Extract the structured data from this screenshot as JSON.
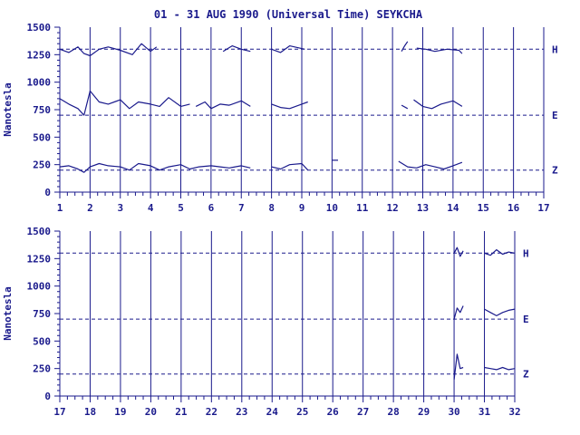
{
  "title": "01 - 31 AUG 1990 (Universal Time) SEYKCHA",
  "colors": {
    "ink": "#1a1a8c",
    "background": "#ffffff"
  },
  "chart_data": [
    {
      "type": "line",
      "ylabel": "Nanotesla",
      "xlim": [
        1,
        17
      ],
      "ylim": [
        0,
        1500
      ],
      "x_ticks": [
        "1",
        "2",
        "3",
        "4",
        "5",
        "6",
        "7",
        "8",
        "9",
        "10",
        "11",
        "12",
        "13",
        "14",
        "15",
        "16",
        "17"
      ],
      "y_ticks": [
        "0",
        "250",
        "500",
        "750",
        "1000",
        "1250",
        "1500"
      ],
      "grid": "vertical lines at each day",
      "reference_lines": [
        {
          "label": "H",
          "value": 1300
        },
        {
          "label": "E",
          "value": 700
        },
        {
          "label": "Z",
          "value": 200
        }
      ],
      "series": [
        {
          "name": "H",
          "segments": [
            {
              "x": [
                1.0,
                1.3,
                1.6,
                1.8,
                2.0,
                2.3,
                2.6,
                3.0,
                3.4,
                3.7,
                4.0,
                4.2
              ],
              "y": [
                1300,
                1270,
                1320,
                1260,
                1240,
                1300,
                1320,
                1290,
                1250,
                1350,
                1280,
                1320
              ]
            },
            {
              "x": [
                6.4,
                6.7,
                7.0,
                7.3
              ],
              "y": [
                1280,
                1330,
                1300,
                1280
              ]
            },
            {
              "x": [
                8.0,
                8.3,
                8.6,
                9.1
              ],
              "y": [
                1300,
                1270,
                1330,
                1300
              ]
            },
            {
              "x": [
                12.3,
                12.4,
                12.5
              ],
              "y": [
                1280,
                1330,
                1370
              ]
            },
            {
              "x": [
                12.8,
                13.1,
                13.4,
                13.8,
                14.2,
                14.3
              ],
              "y": [
                1310,
                1300,
                1280,
                1300,
                1290,
                1260
              ]
            }
          ]
        },
        {
          "name": "E",
          "segments": [
            {
              "x": [
                1.0,
                1.3,
                1.6,
                1.8,
                2.0,
                2.3,
                2.6,
                3.0,
                3.3,
                3.6,
                4.0,
                4.3,
                4.6,
                5.0,
                5.3
              ],
              "y": [
                850,
                800,
                760,
                700,
                920,
                820,
                800,
                840,
                760,
                820,
                800,
                780,
                860,
                780,
                800
              ]
            },
            {
              "x": [
                5.5,
                5.8,
                6.0,
                6.3,
                6.6,
                7.0,
                7.3
              ],
              "y": [
                780,
                820,
                760,
                800,
                790,
                830,
                780
              ]
            },
            {
              "x": [
                8.0,
                8.3,
                8.6,
                9.0,
                9.2
              ],
              "y": [
                800,
                770,
                760,
                800,
                820
              ]
            },
            {
              "x": [
                12.3,
                12.5
              ],
              "y": [
                790,
                760
              ]
            },
            {
              "x": [
                12.7,
                13.0,
                13.3,
                13.6,
                14.0,
                14.3
              ],
              "y": [
                840,
                780,
                760,
                800,
                830,
                780
              ]
            }
          ]
        },
        {
          "name": "Z",
          "segments": [
            {
              "x": [
                1.0,
                1.3,
                1.6,
                1.8,
                2.0,
                2.3,
                2.6,
                3.0,
                3.3,
                3.6,
                4.0,
                4.3,
                4.6,
                5.0,
                5.3,
                5.6,
                6.0,
                6.3,
                6.6,
                7.0,
                7.3
              ],
              "y": [
                230,
                240,
                210,
                180,
                230,
                260,
                240,
                230,
                200,
                260,
                240,
                200,
                230,
                250,
                210,
                230,
                240,
                230,
                220,
                240,
                220
              ]
            },
            {
              "x": [
                8.0,
                8.3,
                8.6,
                9.0,
                9.2
              ],
              "y": [
                230,
                210,
                250,
                260,
                200
              ]
            },
            {
              "x": [
                10.0,
                10.2
              ],
              "y": [
                290,
                290
              ]
            },
            {
              "x": [
                12.2,
                12.5,
                12.8,
                13.1,
                13.4,
                13.7,
                14.0,
                14.3
              ],
              "y": [
                280,
                230,
                220,
                250,
                230,
                210,
                240,
                270
              ]
            }
          ]
        }
      ]
    },
    {
      "type": "line",
      "ylabel": "Nanotesla",
      "xlim": [
        17,
        32
      ],
      "ylim": [
        0,
        1500
      ],
      "x_ticks": [
        "17",
        "18",
        "19",
        "20",
        "21",
        "22",
        "23",
        "24",
        "25",
        "26",
        "27",
        "28",
        "29",
        "30",
        "31",
        "32"
      ],
      "y_ticks": [
        "0",
        "250",
        "500",
        "750",
        "1000",
        "1250",
        "1500"
      ],
      "grid": "vertical lines at each day",
      "reference_lines": [
        {
          "label": "H",
          "value": 1300
        },
        {
          "label": "E",
          "value": 700
        },
        {
          "label": "Z",
          "value": 200
        }
      ],
      "series": [
        {
          "name": "H",
          "segments": [
            {
              "x": [
                30.0,
                30.1,
                30.2,
                30.3
              ],
              "y": [
                1300,
                1350,
                1270,
                1320
              ]
            },
            {
              "x": [
                31.0,
                31.2,
                31.4,
                31.6,
                31.8,
                32.0
              ],
              "y": [
                1300,
                1280,
                1330,
                1290,
                1310,
                1300
              ]
            }
          ]
        },
        {
          "name": "E",
          "segments": [
            {
              "x": [
                30.0,
                30.1,
                30.2,
                30.3
              ],
              "y": [
                700,
                800,
                760,
                820
              ]
            },
            {
              "x": [
                31.0,
                31.2,
                31.4,
                31.6,
                31.8,
                32.0
              ],
              "y": [
                790,
                760,
                730,
                760,
                780,
                790
              ]
            }
          ]
        },
        {
          "name": "Z",
          "segments": [
            {
              "x": [
                30.0,
                30.1,
                30.2,
                30.3
              ],
              "y": [
                150,
                380,
                250,
                260
              ]
            },
            {
              "x": [
                31.0,
                31.2,
                31.4,
                31.6,
                31.8,
                32.0
              ],
              "y": [
                260,
                250,
                240,
                260,
                240,
                250
              ]
            }
          ]
        }
      ]
    }
  ]
}
